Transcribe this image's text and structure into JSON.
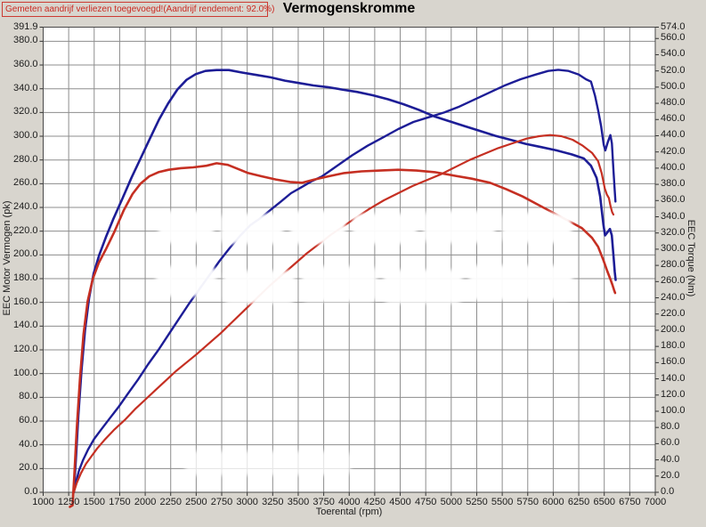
{
  "header": {
    "note": "Gemeten aandrijf verliezen toegevoegd!(Aandrijf rendement: 92.0%)"
  },
  "title": "Vermogenskromme",
  "colors": {
    "blue_series": "#1d1d96",
    "red_series": "#c52f22",
    "grid": "#8d8d8d",
    "plot_border": "#4a4a4a",
    "header_red": "#cc2a22",
    "window_bg": "#d8d5ce",
    "plot_bg": "#ffffff"
  },
  "chart_data": {
    "type": "line",
    "title": "Vermogenskromme",
    "xlabel": "Toerental (rpm)",
    "ylabel_left": "EEC Motor Vermogen (pk)",
    "ylabel_right": "EEC Torque (Nm)",
    "x_range": [
      1000,
      7000
    ],
    "y_left_range": [
      0,
      391.9
    ],
    "y_right_range": [
      0,
      574
    ],
    "grid": true,
    "legend_position": "none",
    "x_ticks": [
      "1000",
      "1250",
      "1500",
      "1750",
      "2000",
      "2250",
      "2500",
      "2750",
      "3000",
      "3250",
      "3500",
      "3750",
      "4000",
      "4250",
      "4500",
      "4750",
      "5000",
      "5250",
      "5500",
      "5750",
      "6000",
      "6250",
      "6500",
      "6750",
      "7000"
    ],
    "y_left_ticks": [
      "391.9",
      "380.0",
      "360.0",
      "340.0",
      "320.0",
      "300.0",
      "280.0",
      "260.0",
      "240.0",
      "220.0",
      "200.0",
      "180.0",
      "160.0",
      "140.0",
      "120.0",
      "100.0",
      "80.0",
      "60.0",
      "40.0",
      "20.0",
      "0.0"
    ],
    "y_right_ticks": [
      "574.0",
      "560.0",
      "540.0",
      "520.0",
      "500.0",
      "480.0",
      "460.0",
      "440.0",
      "420.0",
      "400.0",
      "380.0",
      "360.0",
      "340.0",
      "320.0",
      "300.0",
      "280.0",
      "260.0",
      "240.0",
      "220.0",
      "200.0",
      "180.0",
      "160.0",
      "140.0",
      "120.0",
      "100.0",
      "80.0",
      "60.0",
      "40.0",
      "20.0",
      "0.0"
    ],
    "series": [
      {
        "name": "blue-power-pk",
        "axis": "left",
        "color": "#1d1d96",
        "width": 2.4,
        "points": [
          [
            1300,
            0
          ],
          [
            1320,
            8
          ],
          [
            1350,
            18
          ],
          [
            1390,
            27
          ],
          [
            1440,
            36
          ],
          [
            1500,
            45
          ],
          [
            1570,
            53
          ],
          [
            1650,
            62
          ],
          [
            1740,
            72
          ],
          [
            1830,
            83
          ],
          [
            1930,
            95
          ],
          [
            2030,
            108
          ],
          [
            2130,
            120
          ],
          [
            2230,
            133
          ],
          [
            2330,
            146
          ],
          [
            2430,
            159
          ],
          [
            2530,
            171
          ],
          [
            2630,
            183
          ],
          [
            2730,
            195
          ],
          [
            2830,
            206
          ],
          [
            2930,
            216
          ],
          [
            3030,
            225
          ],
          [
            3130,
            231
          ],
          [
            3230,
            238
          ],
          [
            3330,
            245
          ],
          [
            3430,
            252
          ],
          [
            3530,
            257
          ],
          [
            3630,
            262
          ],
          [
            3730,
            266
          ],
          [
            3830,
            272
          ],
          [
            3930,
            278
          ],
          [
            4030,
            284
          ],
          [
            4180,
            292
          ],
          [
            4330,
            299
          ],
          [
            4480,
            306
          ],
          [
            4630,
            312
          ],
          [
            4780,
            316
          ],
          [
            4930,
            320
          ],
          [
            5080,
            325
          ],
          [
            5230,
            331
          ],
          [
            5380,
            337
          ],
          [
            5530,
            343
          ],
          [
            5680,
            348
          ],
          [
            5830,
            352
          ],
          [
            5950,
            355
          ],
          [
            6050,
            356
          ],
          [
            6150,
            355
          ],
          [
            6250,
            352
          ],
          [
            6320,
            348
          ],
          [
            6370,
            346
          ],
          [
            6410,
            334
          ],
          [
            6440,
            322
          ],
          [
            6470,
            308
          ],
          [
            6495,
            293
          ],
          [
            6510,
            288
          ],
          [
            6535,
            295
          ],
          [
            6560,
            301
          ],
          [
            6575,
            294
          ],
          [
            6590,
            272
          ],
          [
            6602,
            255
          ],
          [
            6610,
            245
          ]
        ]
      },
      {
        "name": "blue-torque-nm",
        "axis": "right",
        "color": "#1d1d96",
        "width": 2.6,
        "points": [
          [
            1300,
            0
          ],
          [
            1320,
            40
          ],
          [
            1345,
            95
          ],
          [
            1375,
            150
          ],
          [
            1410,
            200
          ],
          [
            1450,
            240
          ],
          [
            1495,
            270
          ],
          [
            1550,
            293
          ],
          [
            1615,
            315
          ],
          [
            1690,
            338
          ],
          [
            1775,
            362
          ],
          [
            1865,
            388
          ],
          [
            1955,
            412
          ],
          [
            2045,
            436
          ],
          [
            2135,
            460
          ],
          [
            2225,
            480
          ],
          [
            2315,
            497
          ],
          [
            2405,
            509
          ],
          [
            2495,
            516
          ],
          [
            2590,
            520
          ],
          [
            2700,
            521
          ],
          [
            2820,
            521
          ],
          [
            2950,
            518
          ],
          [
            3090,
            515
          ],
          [
            3230,
            512
          ],
          [
            3370,
            508
          ],
          [
            3510,
            505
          ],
          [
            3650,
            502
          ],
          [
            3790,
            500
          ],
          [
            3930,
            497
          ],
          [
            4080,
            494
          ],
          [
            4230,
            490
          ],
          [
            4380,
            485
          ],
          [
            4530,
            479
          ],
          [
            4680,
            472
          ],
          [
            4830,
            464
          ],
          [
            4980,
            458
          ],
          [
            5130,
            452
          ],
          [
            5280,
            446
          ],
          [
            5430,
            440
          ],
          [
            5580,
            435
          ],
          [
            5730,
            430
          ],
          [
            5880,
            426
          ],
          [
            6030,
            422
          ],
          [
            6180,
            417
          ],
          [
            6300,
            412
          ],
          [
            6370,
            403
          ],
          [
            6425,
            388
          ],
          [
            6460,
            365
          ],
          [
            6492,
            330
          ],
          [
            6508,
            317
          ],
          [
            6532,
            321
          ],
          [
            6556,
            325
          ],
          [
            6574,
            317
          ],
          [
            6590,
            293
          ],
          [
            6603,
            272
          ],
          [
            6612,
            262
          ]
        ]
      },
      {
        "name": "red-power-pk",
        "axis": "left",
        "color": "#c52f22",
        "width": 2.2,
        "points": [
          [
            1300,
            0
          ],
          [
            1330,
            8
          ],
          [
            1370,
            16
          ],
          [
            1420,
            24
          ],
          [
            1470,
            30
          ],
          [
            1530,
            37
          ],
          [
            1600,
            44
          ],
          [
            1700,
            53
          ],
          [
            1800,
            61
          ],
          [
            1900,
            70
          ],
          [
            2000,
            78
          ],
          [
            2100,
            86
          ],
          [
            2200,
            94
          ],
          [
            2300,
            102
          ],
          [
            2400,
            109
          ],
          [
            2500,
            116
          ],
          [
            2620,
            125
          ],
          [
            2740,
            134
          ],
          [
            2860,
            144
          ],
          [
            2980,
            154
          ],
          [
            3100,
            164
          ],
          [
            3220,
            174
          ],
          [
            3340,
            183
          ],
          [
            3460,
            192
          ],
          [
            3580,
            201
          ],
          [
            3700,
            209
          ],
          [
            3820,
            217
          ],
          [
            3940,
            224
          ],
          [
            4060,
            231
          ],
          [
            4200,
            239
          ],
          [
            4340,
            246
          ],
          [
            4480,
            252
          ],
          [
            4620,
            258
          ],
          [
            4760,
            263
          ],
          [
            4900,
            268
          ],
          [
            5040,
            274
          ],
          [
            5180,
            280
          ],
          [
            5320,
            285
          ],
          [
            5460,
            290
          ],
          [
            5600,
            294
          ],
          [
            5740,
            298
          ],
          [
            5860,
            300
          ],
          [
            5970,
            301
          ],
          [
            6080,
            300
          ],
          [
            6190,
            297
          ],
          [
            6290,
            292
          ],
          [
            6380,
            286
          ],
          [
            6440,
            279
          ],
          [
            6475,
            269
          ],
          [
            6505,
            256
          ],
          [
            6525,
            251
          ],
          [
            6545,
            248
          ],
          [
            6562,
            241
          ],
          [
            6578,
            236
          ],
          [
            6590,
            234
          ]
        ]
      },
      {
        "name": "red-torque-nm",
        "axis": "right",
        "color": "#c52f22",
        "width": 2.6,
        "points": [
          [
            1262,
            -18
          ],
          [
            1288,
            -16
          ],
          [
            1305,
            20
          ],
          [
            1330,
            80
          ],
          [
            1360,
            140
          ],
          [
            1395,
            195
          ],
          [
            1435,
            235
          ],
          [
            1485,
            263
          ],
          [
            1545,
            283
          ],
          [
            1615,
            300
          ],
          [
            1700,
            322
          ],
          [
            1790,
            348
          ],
          [
            1875,
            368
          ],
          [
            1955,
            381
          ],
          [
            2040,
            390
          ],
          [
            2130,
            395
          ],
          [
            2230,
            398
          ],
          [
            2350,
            400
          ],
          [
            2470,
            401
          ],
          [
            2600,
            403
          ],
          [
            2700,
            406
          ],
          [
            2810,
            404
          ],
          [
            2910,
            399
          ],
          [
            3010,
            394
          ],
          [
            3140,
            390
          ],
          [
            3280,
            386
          ],
          [
            3420,
            383
          ],
          [
            3540,
            382
          ],
          [
            3660,
            386
          ],
          [
            3800,
            390
          ],
          [
            3950,
            394
          ],
          [
            4120,
            396
          ],
          [
            4300,
            397
          ],
          [
            4480,
            398
          ],
          [
            4660,
            397
          ],
          [
            4840,
            395
          ],
          [
            5020,
            391
          ],
          [
            5200,
            387
          ],
          [
            5380,
            382
          ],
          [
            5540,
            374
          ],
          [
            5700,
            365
          ],
          [
            5850,
            355
          ],
          [
            6000,
            345
          ],
          [
            6150,
            335
          ],
          [
            6280,
            326
          ],
          [
            6380,
            314
          ],
          [
            6440,
            303
          ],
          [
            6490,
            287
          ],
          [
            6530,
            273
          ],
          [
            6560,
            263
          ],
          [
            6580,
            256
          ],
          [
            6595,
            250
          ],
          [
            6606,
            246
          ]
        ]
      }
    ]
  }
}
